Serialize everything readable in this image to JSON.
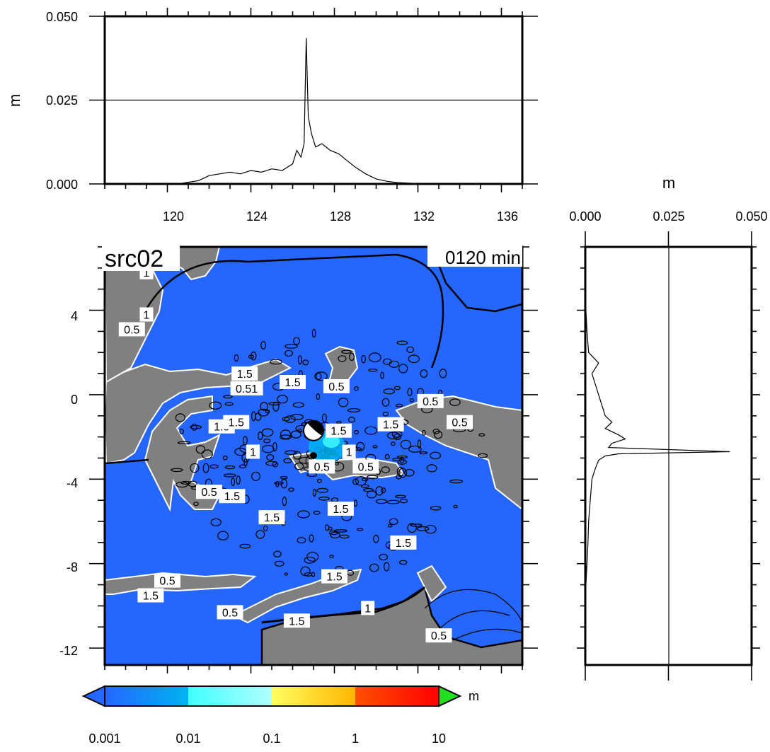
{
  "chart_data": [
    {
      "type": "line",
      "panel": "top-profile",
      "ylabel": "m",
      "yticks": [
        "0.000",
        "0.025",
        "0.050"
      ],
      "ylim": [
        0,
        0.05
      ],
      "xticks": [
        "120",
        "124",
        "128",
        "132",
        "136"
      ],
      "xlim": [
        117,
        137
      ],
      "x": [
        117,
        118,
        119,
        120,
        120.5,
        121,
        121.5,
        122,
        122.5,
        123,
        123.5,
        124,
        124.5,
        125,
        125.5,
        126,
        126.2,
        126.4,
        126.55,
        126.65,
        126.75,
        126.9,
        127.1,
        127.4,
        127.8,
        128.2,
        128.6,
        129,
        129.5,
        130,
        130.5,
        131,
        132,
        133,
        134,
        136.7
      ],
      "y": [
        0,
        0,
        0,
        0,
        0,
        0.0005,
        0.001,
        0.0025,
        0.003,
        0.0035,
        0.003,
        0.004,
        0.0035,
        0.0045,
        0.004,
        0.006,
        0.01,
        0.008,
        0.012,
        0.0435,
        0.02,
        0.015,
        0.011,
        0.012,
        0.01,
        0.009,
        0.007,
        0.005,
        0.003,
        0.0015,
        0.0008,
        0.0004,
        0.0001,
        0,
        0,
        0
      ]
    },
    {
      "type": "line",
      "panel": "right-profile",
      "xlabel": "m",
      "xticks": [
        "0.000",
        "0.025",
        "0.050"
      ],
      "xlim": [
        0,
        0.05
      ],
      "y": [
        7,
        6,
        5,
        4,
        3,
        2,
        1.5,
        1,
        0.5,
        0,
        -0.5,
        -1,
        -1.3,
        -1.6,
        -1.9,
        -2.1,
        -2.3,
        -2.5,
        -2.7,
        -2.8,
        -2.9,
        -3.1,
        -3.5,
        -4,
        -5,
        -6,
        -7,
        -8,
        -9,
        -10,
        -12,
        -12.5
      ],
      "x": [
        0,
        0,
        0,
        0.0002,
        0.0005,
        0.001,
        0.004,
        0.002,
        0.003,
        0.004,
        0.005,
        0.006,
        0.008,
        0.006,
        0.01,
        0.012,
        0.008,
        0.007,
        0.0435,
        0.01,
        0.006,
        0.004,
        0.003,
        0.002,
        0.0015,
        0.001,
        0.0008,
        0.0005,
        0.0002,
        0,
        0,
        0
      ]
    },
    {
      "type": "heatmap",
      "panel": "map",
      "title": "src02",
      "time_label": "0120 min",
      "xlim": [
        117,
        137
      ],
      "ylim": [
        -12.8,
        7
      ],
      "yticks": [
        "4",
        "0",
        "-4",
        "-8",
        "-12"
      ],
      "contour_labels": [
        {
          "text": "1",
          "lon": 119.0,
          "lat": 5.8
        },
        {
          "text": "1",
          "lon": 119.0,
          "lat": 3.8
        },
        {
          "text": "0.5",
          "lon": 118.3,
          "lat": 3.1
        },
        {
          "text": "1.5",
          "lon": 123.7,
          "lat": 1.0
        },
        {
          "text": "0.51",
          "lon": 123.8,
          "lat": 0.3
        },
        {
          "text": "1.5",
          "lon": 126.0,
          "lat": 0.6
        },
        {
          "text": "0.5",
          "lon": 128.1,
          "lat": 0.4
        },
        {
          "text": "0.5",
          "lon": 132.6,
          "lat": -0.3
        },
        {
          "text": "0.5",
          "lon": 134.0,
          "lat": -1.3
        },
        {
          "text": "1.5",
          "lon": 122.6,
          "lat": -1.5
        },
        {
          "text": "1.5",
          "lon": 123.3,
          "lat": -1.3
        },
        {
          "text": "1.5",
          "lon": 128.2,
          "lat": -1.7
        },
        {
          "text": "1.5",
          "lon": 130.7,
          "lat": -1.4
        },
        {
          "text": "1",
          "lon": 124.1,
          "lat": -2.7
        },
        {
          "text": "1",
          "lon": 128.7,
          "lat": -2.7
        },
        {
          "text": "0.5",
          "lon": 127.4,
          "lat": -3.4
        },
        {
          "text": "0.5",
          "lon": 129.5,
          "lat": -3.4
        },
        {
          "text": "0.5",
          "lon": 122.0,
          "lat": -4.6
        },
        {
          "text": "1.5",
          "lon": 123.1,
          "lat": -4.8
        },
        {
          "text": "1.5",
          "lon": 125.0,
          "lat": -5.8
        },
        {
          "text": "1.5",
          "lon": 128.3,
          "lat": -5.4
        },
        {
          "text": "1.5",
          "lon": 131.3,
          "lat": -7.0
        },
        {
          "text": "0.5",
          "lon": 120.0,
          "lat": -8.8
        },
        {
          "text": "1.5",
          "lon": 119.2,
          "lat": -9.5
        },
        {
          "text": "1.5",
          "lon": 128.0,
          "lat": -8.6
        },
        {
          "text": "0.5",
          "lon": 123.0,
          "lat": -10.3
        },
        {
          "text": "1",
          "lon": 129.6,
          "lat": -10.1
        },
        {
          "text": "1.5",
          "lon": 126.2,
          "lat": -10.7
        },
        {
          "text": "0.5",
          "lon": 133.0,
          "lat": -11.4
        }
      ],
      "source_lon": 127.0,
      "source_lat": -1.7,
      "station_lon": 126.1,
      "station_lat": -2.7,
      "colors": {
        "ocean": "#2566ff",
        "land": "#808080",
        "coast": "#ffffff"
      }
    }
  ],
  "colorbar": {
    "unit": "m",
    "tick_labels": [
      "0.001",
      "0.01",
      "0.1",
      "1",
      "10"
    ],
    "colors": [
      "#2566ff",
      "#00b4f0",
      "#40ffff",
      "#b0ffff",
      "#ffff60",
      "#ffb400",
      "#ff5000",
      "#ff0000",
      "#20e020"
    ]
  }
}
